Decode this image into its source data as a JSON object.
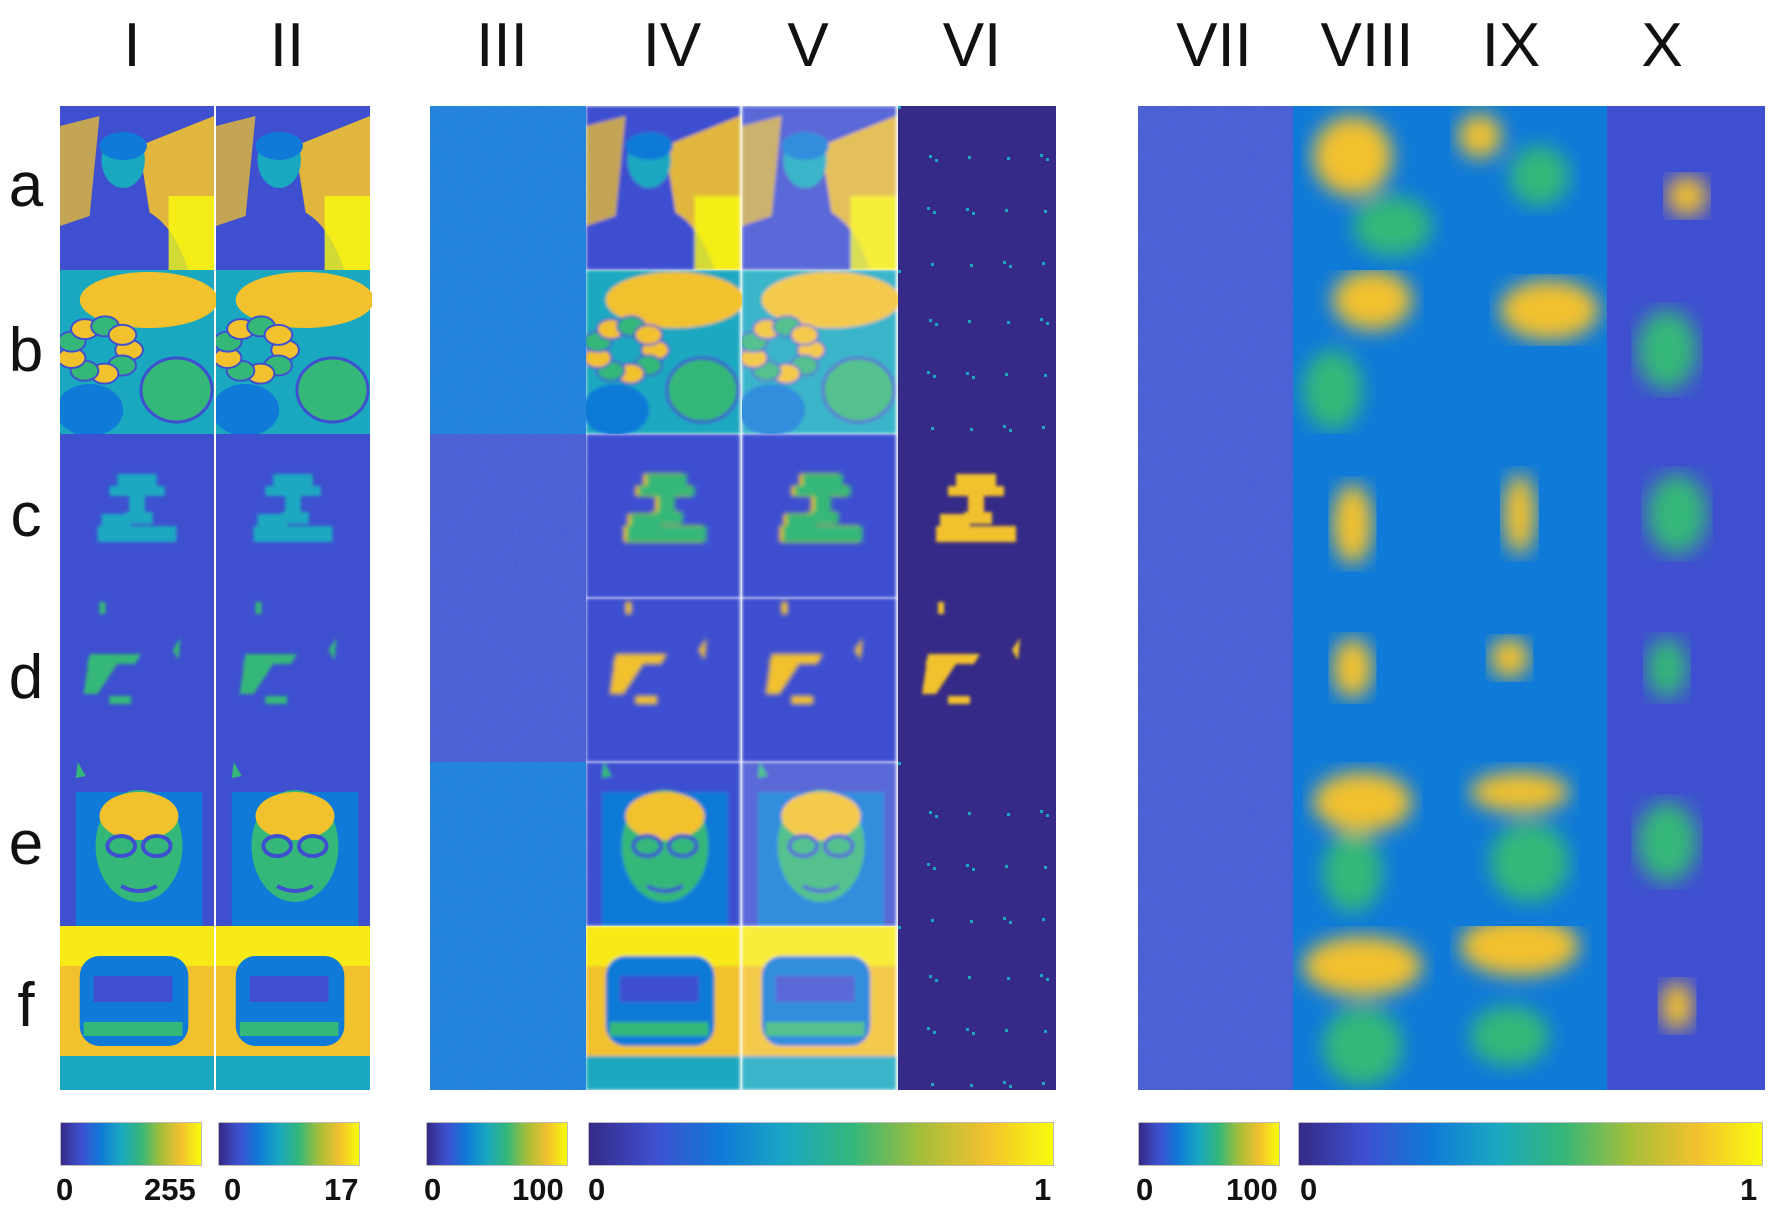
{
  "columns": {
    "c1": "I",
    "c2": "II",
    "c3": "III",
    "c4": "IV",
    "c5": "V",
    "c6": "VI",
    "c7": "VII",
    "c8": "VIII",
    "c9": "IX",
    "c10": "X"
  },
  "rows": {
    "a": "a",
    "b": "b",
    "c": "c",
    "d": "d",
    "e": "e",
    "f": "f"
  },
  "colorbars": {
    "cb1": {
      "min": "0",
      "max": "255"
    },
    "cb2": {
      "min": "0",
      "max": "17"
    },
    "cb3": {
      "min": "0",
      "max": "100"
    },
    "cb4": {
      "min": "0",
      "max": "1"
    },
    "cb5": {
      "min": "0",
      "max": "100"
    },
    "cb6": {
      "min": "0",
      "max": "1"
    }
  },
  "colormap": [
    "#352a87",
    "#3e50d0",
    "#0f7ad8",
    "#1aa8c0",
    "#35b779",
    "#a5be3a",
    "#f2c12e",
    "#f9fb0e"
  ]
}
